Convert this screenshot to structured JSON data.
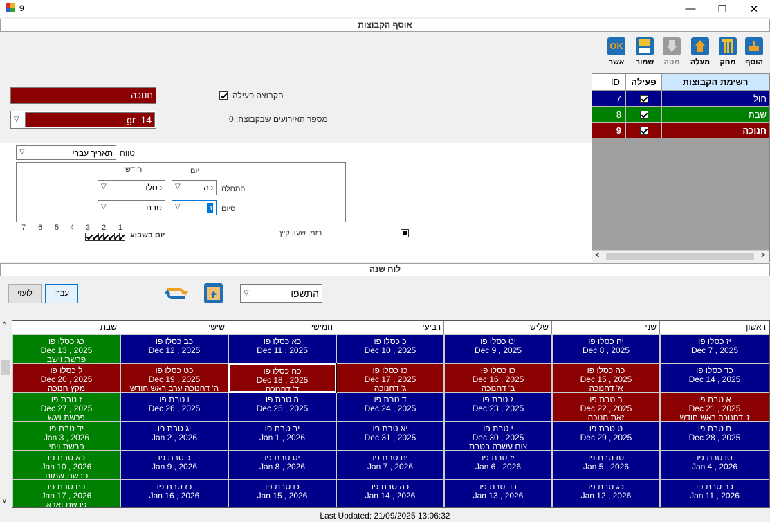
{
  "window": {
    "title": "9",
    "minimize": "—",
    "maximize": "☐",
    "close": "✕"
  },
  "sections": {
    "groups_header": "אוסף הקבוצות",
    "year_header": "לוח שנה"
  },
  "toolbar": [
    {
      "name": "add",
      "label": "הוסף",
      "icon": "add-folder-icon",
      "enabled": true
    },
    {
      "name": "delete",
      "label": "מחק",
      "icon": "trash-icon",
      "enabled": true
    },
    {
      "name": "up",
      "label": "מעלה",
      "icon": "arrow-up-icon",
      "enabled": true
    },
    {
      "name": "down",
      "label": "מטה",
      "icon": "arrow-down-icon",
      "enabled": false
    },
    {
      "name": "save",
      "label": "שמור",
      "icon": "floppy-icon",
      "enabled": true
    },
    {
      "name": "ok",
      "label": "אשר",
      "icon": "ok-icon",
      "enabled": true
    }
  ],
  "form": {
    "group_name": "חנוכה",
    "group_code": "gr_14",
    "active_label": "הקבוצה פעילה",
    "active_checked": true,
    "events_count_label": "מספר האירועים שבקבוצה: 0",
    "range_label": "טווח",
    "range_value": "תאריך עברי",
    "col_day": "יום",
    "col_month": "חודש",
    "start_label": "התחלה",
    "end_label": "סיום",
    "start_day": "כה",
    "start_month": "כסלו",
    "end_day": "ב",
    "end_month": "טבת",
    "weekday_label": "יום בשבוע",
    "weekdays": [
      "1",
      "2",
      "3",
      "4",
      "5",
      "6",
      "7"
    ],
    "dst_label": "בזמן שעון קיץ"
  },
  "groups": {
    "headers": {
      "name": "רשימת הקבוצות",
      "active": "פעילה",
      "id": "ID"
    },
    "rows": [
      {
        "name": "חול",
        "id": "7",
        "color": "#00008b"
      },
      {
        "name": "שבת",
        "id": "8",
        "color": "#008000"
      },
      {
        "name": "חנוכה",
        "id": "9",
        "color": "#8b0000"
      }
    ]
  },
  "calendar_controls": {
    "year": "התשפו",
    "hebrew_btn": "עברי",
    "gregorian_btn": "לועזי"
  },
  "colors": {
    "weekday": "#00008b",
    "shabbat": "#008000",
    "holiday": "#8b0000"
  },
  "calendar": {
    "days": [
      "ראשון",
      "שני",
      "שלישי",
      "רביעי",
      "חמישי",
      "שישי",
      "שבת"
    ],
    "weeks": [
      [
        {
          "h": "יז כסלו פו",
          "g": "Dec 7 , 2025",
          "n": "",
          "t": "w"
        },
        {
          "h": "יח כסלו פו",
          "g": "Dec 8 , 2025",
          "n": "",
          "t": "w"
        },
        {
          "h": "יט כסלו פו",
          "g": "Dec 9 , 2025",
          "n": "",
          "t": "w"
        },
        {
          "h": "כ כסלו פו",
          "g": "Dec 10 , 2025",
          "n": "",
          "t": "w"
        },
        {
          "h": "כא כסלו פו",
          "g": "Dec 11 , 2025",
          "n": "",
          "t": "w"
        },
        {
          "h": "כב כסלו פו",
          "g": "Dec 12 , 2025",
          "n": "",
          "t": "w"
        },
        {
          "h": "כג כסלו פו",
          "g": "Dec 13 , 2025",
          "n": "פרשת וישב",
          "t": "s"
        }
      ],
      [
        {
          "h": "כד כסלו פו",
          "g": "Dec 14 , 2025",
          "n": "",
          "t": "w"
        },
        {
          "h": "כה כסלו פו",
          "g": "Dec 15 , 2025",
          "n": "א' דחנוכה",
          "t": "x"
        },
        {
          "h": "כו כסלו פו",
          "g": "Dec 16 , 2025",
          "n": "ב' דחנוכה",
          "t": "x"
        },
        {
          "h": "כז כסלו פו",
          "g": "Dec 17 , 2025",
          "n": "ג' דחנוכה",
          "t": "x"
        },
        {
          "h": "כח כסלו פו",
          "g": "Dec 18 , 2025",
          "n": "ד' דחנוכה",
          "t": "x",
          "sel": true
        },
        {
          "h": "כט כסלו פו",
          "g": "Dec 19 , 2025",
          "n": "ה' דחנוכה ערב ראש חודש",
          "t": "x"
        },
        {
          "h": "ל כסלו פו",
          "g": "Dec 20 , 2025",
          "n": "מקץ חנוכה",
          "t": "x"
        }
      ],
      [
        {
          "h": "א טבת פו",
          "g": "Dec 21 , 2025",
          "n": "ז' דחנוכה ראש חודש",
          "t": "x"
        },
        {
          "h": "ב טבת פו",
          "g": "Dec 22 , 2025",
          "n": "זאת חנוכה",
          "t": "x"
        },
        {
          "h": "ג טבת פו",
          "g": "Dec 23 , 2025",
          "n": "",
          "t": "w"
        },
        {
          "h": "ד טבת פו",
          "g": "Dec 24 , 2025",
          "n": "",
          "t": "w"
        },
        {
          "h": "ה טבת פו",
          "g": "Dec 25 , 2025",
          "n": "",
          "t": "w"
        },
        {
          "h": "ו טבת פו",
          "g": "Dec 26 , 2025",
          "n": "",
          "t": "w"
        },
        {
          "h": "ז טבת פו",
          "g": "Dec 27 , 2025",
          "n": "פרשת ויגש",
          "t": "s"
        }
      ],
      [
        {
          "h": "ח טבת פו",
          "g": "Dec 28 , 2025",
          "n": "",
          "t": "w"
        },
        {
          "h": "ט טבת פו",
          "g": "Dec 29 , 2025",
          "n": "",
          "t": "w"
        },
        {
          "h": "י טבת פו",
          "g": "Dec 30 , 2025",
          "n": "צום עשרה בטבת",
          "t": "w"
        },
        {
          "h": "יא טבת פו",
          "g": "Dec 31 , 2025",
          "n": "",
          "t": "w"
        },
        {
          "h": "יב טבת פו",
          "g": "Jan 1 , 2026",
          "n": "",
          "t": "w"
        },
        {
          "h": "יג טבת פו",
          "g": "Jan 2 , 2026",
          "n": "",
          "t": "w"
        },
        {
          "h": "יד טבת פו",
          "g": "Jan 3 , 2026",
          "n": "פרשת ויחי",
          "t": "s"
        }
      ],
      [
        {
          "h": "טו טבת פו",
          "g": "Jan 4 , 2026",
          "n": "",
          "t": "w"
        },
        {
          "h": "טז טבת פו",
          "g": "Jan 5 , 2026",
          "n": "",
          "t": "w"
        },
        {
          "h": "יז טבת פו",
          "g": "Jan 6 , 2026",
          "n": "",
          "t": "w"
        },
        {
          "h": "יח טבת פו",
          "g": "Jan 7 , 2026",
          "n": "",
          "t": "w"
        },
        {
          "h": "יט טבת פו",
          "g": "Jan 8 , 2026",
          "n": "",
          "t": "w"
        },
        {
          "h": "כ טבת פו",
          "g": "Jan 9 , 2026",
          "n": "",
          "t": "w"
        },
        {
          "h": "כא טבת פו",
          "g": "Jan 10 , 2026",
          "n": "פרשת שמות",
          "t": "s"
        }
      ],
      [
        {
          "h": "כב טבת פו",
          "g": "Jan 11 , 2026",
          "n": "",
          "t": "w"
        },
        {
          "h": "כג טבת פו",
          "g": "Jan 12 , 2026",
          "n": "",
          "t": "w"
        },
        {
          "h": "כד טבת פו",
          "g": "Jan 13 , 2026",
          "n": "",
          "t": "w"
        },
        {
          "h": "כה טבת פו",
          "g": "Jan 14 , 2026",
          "n": "",
          "t": "w"
        },
        {
          "h": "כו טבת פו",
          "g": "Jan 15 , 2026",
          "n": "",
          "t": "w"
        },
        {
          "h": "כז טבת פו",
          "g": "Jan 16 , 2026",
          "n": "",
          "t": "w"
        },
        {
          "h": "כח טבת פו",
          "g": "Jan 17 , 2026",
          "n": "פרשת וארא",
          "t": "s"
        }
      ]
    ]
  },
  "status": "Last Updated: 21/09/2025 13:06:32"
}
